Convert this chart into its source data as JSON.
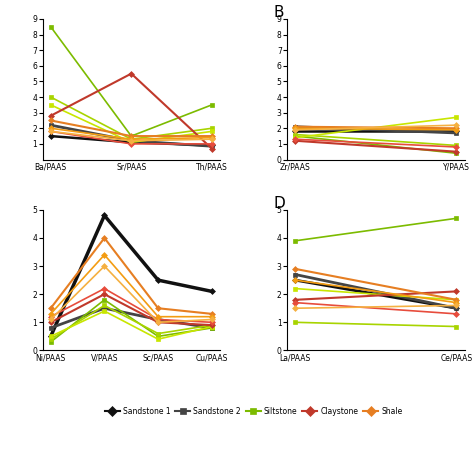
{
  "panel_A": {
    "show_label": false,
    "x_labels": [
      "Ba/PAAS",
      "Sr/PAAS",
      "Th/PAAS"
    ],
    "ylim": [
      0,
      9
    ],
    "yticks": [
      1,
      2,
      3,
      4,
      5,
      6,
      7,
      8,
      9
    ],
    "series": [
      {
        "color": "#111111",
        "marker": "D",
        "lw": 1.8,
        "values": [
          1.5,
          1.1,
          0.9
        ]
      },
      {
        "color": "#444444",
        "marker": "s",
        "lw": 2.0,
        "values": [
          2.2,
          1.2,
          0.85
        ]
      },
      {
        "color": "#7cbb00",
        "marker": "s",
        "lw": 1.2,
        "values": [
          8.5,
          1.5,
          3.5
        ]
      },
      {
        "color": "#a8d400",
        "marker": "s",
        "lw": 1.2,
        "values": [
          4.0,
          1.3,
          2.0
        ]
      },
      {
        "color": "#c8e600",
        "marker": "s",
        "lw": 1.2,
        "values": [
          3.5,
          1.1,
          1.8
        ]
      },
      {
        "color": "#c0392b",
        "marker": "D",
        "lw": 1.5,
        "values": [
          2.8,
          5.5,
          0.7
        ]
      },
      {
        "color": "#e74c3c",
        "marker": "D",
        "lw": 1.2,
        "values": [
          1.8,
          1.0,
          1.0
        ]
      },
      {
        "color": "#e67e22",
        "marker": "D",
        "lw": 1.5,
        "values": [
          2.5,
          1.5,
          1.5
        ]
      },
      {
        "color": "#f39c12",
        "marker": "D",
        "lw": 1.2,
        "values": [
          2.0,
          1.3,
          1.4
        ]
      },
      {
        "color": "#f5b041",
        "marker": "D",
        "lw": 1.2,
        "values": [
          1.8,
          1.2,
          1.3
        ]
      }
    ]
  },
  "panel_B": {
    "show_label": true,
    "panel_letter": "B",
    "x_labels": [
      "Zr/PAAS",
      "Y/PAAS"
    ],
    "ylim": [
      0,
      9
    ],
    "yticks": [
      0,
      1,
      2,
      3,
      4,
      5,
      6,
      7,
      8,
      9
    ],
    "series": [
      {
        "color": "#111111",
        "marker": "D",
        "lw": 1.8,
        "values": [
          1.8,
          1.8
        ]
      },
      {
        "color": "#444444",
        "marker": "s",
        "lw": 2.0,
        "values": [
          2.1,
          1.7
        ]
      },
      {
        "color": "#7cbb00",
        "marker": "s",
        "lw": 1.2,
        "values": [
          1.5,
          0.4
        ]
      },
      {
        "color": "#a8d400",
        "marker": "s",
        "lw": 1.2,
        "values": [
          1.6,
          0.9
        ]
      },
      {
        "color": "#c8e600",
        "marker": "s",
        "lw": 1.2,
        "values": [
          1.4,
          2.7
        ]
      },
      {
        "color": "#c0392b",
        "marker": "D",
        "lw": 1.5,
        "values": [
          1.2,
          0.5
        ]
      },
      {
        "color": "#e74c3c",
        "marker": "D",
        "lw": 1.2,
        "values": [
          1.3,
          0.8
        ]
      },
      {
        "color": "#e67e22",
        "marker": "D",
        "lw": 1.5,
        "values": [
          2.1,
          2.0
        ]
      },
      {
        "color": "#f39c12",
        "marker": "D",
        "lw": 1.2,
        "values": [
          2.0,
          1.9
        ]
      },
      {
        "color": "#f5b041",
        "marker": "D",
        "lw": 1.2,
        "values": [
          1.9,
          2.2
        ]
      }
    ]
  },
  "panel_C": {
    "show_label": false,
    "x_labels": [
      "Ni/PAAS",
      "V/PAAS",
      "Sc/PAAS",
      "Cu/PAAS"
    ],
    "ylim": [
      0,
      5
    ],
    "yticks": [],
    "series": [
      {
        "color": "#111111",
        "marker": "D",
        "lw": 2.5,
        "values": [
          0.5,
          4.8,
          2.5,
          2.1
        ]
      },
      {
        "color": "#444444",
        "marker": "s",
        "lw": 2.0,
        "values": [
          0.8,
          1.5,
          1.1,
          0.8
        ]
      },
      {
        "color": "#7cbb00",
        "marker": "s",
        "lw": 1.2,
        "values": [
          0.3,
          1.8,
          0.5,
          0.8
        ]
      },
      {
        "color": "#a8d400",
        "marker": "s",
        "lw": 1.2,
        "values": [
          0.4,
          1.6,
          0.6,
          0.9
        ]
      },
      {
        "color": "#c8e600",
        "marker": "s",
        "lw": 1.2,
        "values": [
          0.5,
          1.4,
          0.4,
          0.85
        ]
      },
      {
        "color": "#c0392b",
        "marker": "D",
        "lw": 1.5,
        "values": [
          1.0,
          2.0,
          1.0,
          0.9
        ]
      },
      {
        "color": "#e74c3c",
        "marker": "D",
        "lw": 1.2,
        "values": [
          1.2,
          2.2,
          1.1,
          1.0
        ]
      },
      {
        "color": "#e67e22",
        "marker": "D",
        "lw": 1.5,
        "values": [
          1.5,
          4.0,
          1.5,
          1.3
        ]
      },
      {
        "color": "#f39c12",
        "marker": "D",
        "lw": 1.2,
        "values": [
          1.3,
          3.4,
          1.2,
          1.2
        ]
      },
      {
        "color": "#f5b041",
        "marker": "D",
        "lw": 1.2,
        "values": [
          1.1,
          3.0,
          1.0,
          1.1
        ]
      }
    ]
  },
  "panel_D": {
    "show_label": true,
    "panel_letter": "D",
    "x_labels": [
      "La/PAAS",
      "Ce/PAAS"
    ],
    "ylim": [
      0,
      5
    ],
    "yticks": [
      0,
      1,
      2,
      3,
      4,
      5
    ],
    "series": [
      {
        "color": "#111111",
        "marker": "D",
        "lw": 2.0,
        "values": [
          2.5,
          1.5
        ]
      },
      {
        "color": "#444444",
        "marker": "s",
        "lw": 2.0,
        "values": [
          2.7,
          1.5
        ]
      },
      {
        "color": "#7cbb00",
        "marker": "s",
        "lw": 1.2,
        "values": [
          3.9,
          4.7
        ]
      },
      {
        "color": "#a8d400",
        "marker": "s",
        "lw": 1.2,
        "values": [
          1.0,
          0.85
        ]
      },
      {
        "color": "#c8e600",
        "marker": "s",
        "lw": 1.2,
        "values": [
          2.2,
          1.8
        ]
      },
      {
        "color": "#c0392b",
        "marker": "D",
        "lw": 1.5,
        "values": [
          1.8,
          2.1
        ]
      },
      {
        "color": "#e74c3c",
        "marker": "D",
        "lw": 1.2,
        "values": [
          1.7,
          1.3
        ]
      },
      {
        "color": "#e67e22",
        "marker": "D",
        "lw": 1.5,
        "values": [
          2.9,
          1.8
        ]
      },
      {
        "color": "#f39c12",
        "marker": "D",
        "lw": 1.2,
        "values": [
          2.5,
          1.7
        ]
      },
      {
        "color": "#f5b041",
        "marker": "D",
        "lw": 1.2,
        "values": [
          1.5,
          1.6
        ]
      }
    ]
  },
  "legend": [
    {
      "label": "Sandstone 1",
      "color": "#111111",
      "marker": "D"
    },
    {
      "label": "Sandstone 2",
      "color": "#444444",
      "marker": "s"
    },
    {
      "label": "Siltstone",
      "color": "#7cbb00",
      "marker": "s"
    },
    {
      "label": "Claystone",
      "color": "#c0392b",
      "marker": "D"
    },
    {
      "label": "Shale",
      "color": "#e67e22",
      "marker": "D"
    }
  ],
  "bg_color": "#ffffff"
}
